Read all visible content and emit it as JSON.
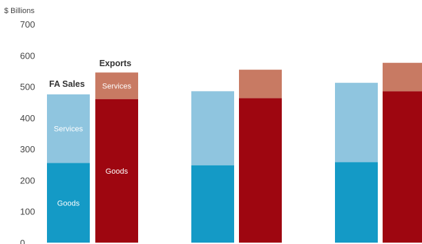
{
  "chart_data": {
    "type": "bar",
    "stacked": true,
    "ylabel": "$ Billions",
    "ylim": [
      0,
      700
    ],
    "yticks": [
      "0",
      "100",
      "200",
      "300",
      "400",
      "500",
      "600",
      "700"
    ],
    "grid": false,
    "groups": [
      {
        "FA Sales": {
          "Goods": 255,
          "Services": 220
        },
        "Exports": {
          "Goods": 460,
          "Services": 85
        }
      },
      {
        "FA Sales": {
          "Goods": 248,
          "Services": 237
        },
        "Exports": {
          "Goods": 463,
          "Services": 91
        }
      },
      {
        "FA Sales": {
          "Goods": 258,
          "Services": 254
        },
        "Exports": {
          "Goods": 485,
          "Services": 91
        }
      }
    ],
    "bar_labels": {
      "fa_sales": "FA Sales",
      "exports": "Exports"
    },
    "segment_labels": {
      "goods": "Goods",
      "services": "Services"
    },
    "colors": {
      "fa_goods": "#149ac6",
      "fa_services": "#8fc5df",
      "ex_goods": "#9e0610",
      "ex_services": "#c87a63"
    }
  }
}
